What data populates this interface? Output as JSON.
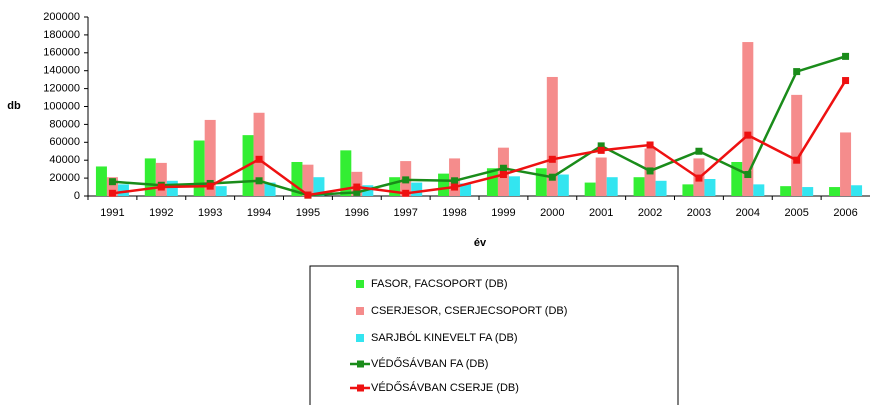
{
  "chart_data": {
    "type": "bar_line",
    "x_label": "év",
    "y_label": "db",
    "categories": [
      "1991",
      "1992",
      "1993",
      "1994",
      "1995",
      "1996",
      "1997",
      "1998",
      "1999",
      "2000",
      "2001",
      "2002",
      "2003",
      "2004",
      "2005",
      "2006"
    ],
    "ylim": [
      0,
      200000
    ],
    "yticks": [
      0,
      20000,
      40000,
      60000,
      80000,
      100000,
      120000,
      140000,
      160000,
      180000,
      200000
    ],
    "series": [
      {
        "name": "FASOR, FACSOPORT (DB)",
        "kind": "bar",
        "color": "#33ee33",
        "values": [
          33000,
          42000,
          62000,
          68000,
          38000,
          51000,
          21000,
          25000,
          31000,
          31000,
          15000,
          21000,
          13000,
          38000,
          11000,
          10000
        ]
      },
      {
        "name": "CSERJESOR, CSERJECSOPORT (DB)",
        "kind": "bar",
        "color": "#f58c8c",
        "values": [
          21000,
          37000,
          85000,
          93000,
          35000,
          27000,
          39000,
          42000,
          54000,
          133000,
          43000,
          53000,
          42000,
          172000,
          113000,
          71000
        ]
      },
      {
        "name": "SARJBÓL KINEVELT FA (DB)",
        "kind": "bar",
        "color": "#33e5f0",
        "values": [
          13000,
          17000,
          11000,
          15000,
          21000,
          12000,
          15000,
          14000,
          22000,
          24000,
          21000,
          17000,
          19000,
          13000,
          10000,
          12000
        ]
      },
      {
        "name": "VÉDŐSÁVBAN FA (DB)",
        "kind": "line",
        "color": "#1a8c1a",
        "values": [
          16000,
          12000,
          14000,
          17000,
          1000,
          4000,
          18000,
          17000,
          31000,
          21000,
          56000,
          28000,
          50000,
          24000,
          139000,
          156000
        ]
      },
      {
        "name": "VÉDŐSÁVBAN CSERJE (DB)",
        "kind": "line",
        "color": "#ee1111",
        "values": [
          3000,
          10000,
          11000,
          41000,
          1000,
          10000,
          3000,
          10000,
          24000,
          41000,
          51000,
          57000,
          20000,
          68000,
          40000,
          129000
        ]
      }
    ]
  }
}
